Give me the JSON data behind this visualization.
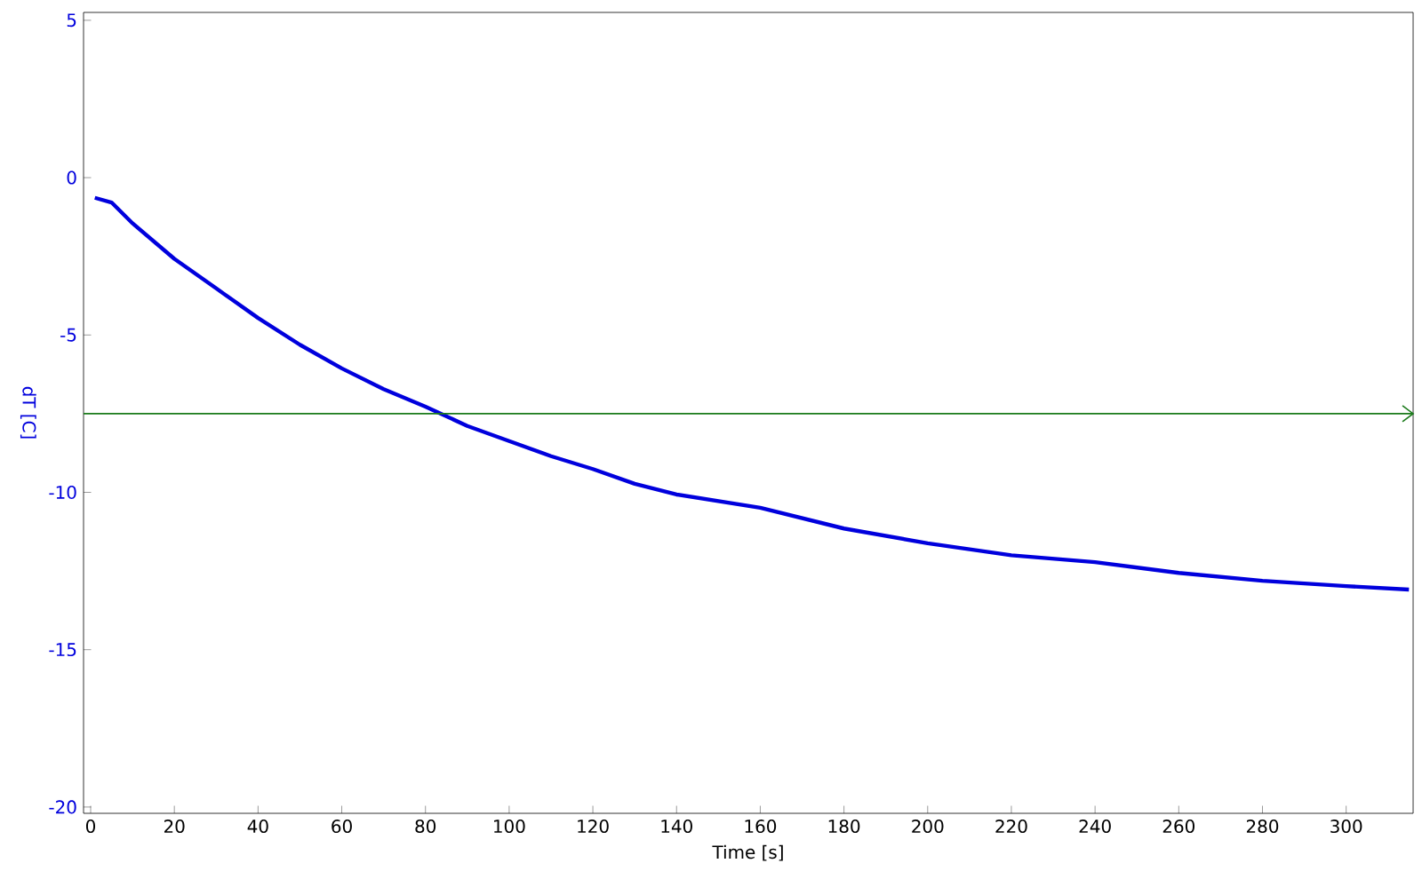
{
  "chart_data": {
    "type": "line",
    "xlabel": "Time [s]",
    "ylabel": "dT [C]",
    "x": [
      1,
      5,
      10,
      20,
      30,
      40,
      50,
      60,
      70,
      80,
      90,
      100,
      110,
      120,
      130,
      140,
      160,
      180,
      200,
      220,
      240,
      260,
      280,
      300,
      315
    ],
    "series": [
      {
        "color": "#0000dd",
        "values": [
          -0.64,
          -0.79,
          -1.45,
          -2.58,
          -3.52,
          -4.46,
          -5.31,
          -6.06,
          -6.72,
          -7.28,
          -7.89,
          -8.37,
          -8.85,
          -9.26,
          -9.73,
          -10.07,
          -10.49,
          -11.15,
          -11.62,
          -12.0,
          -12.22,
          -12.56,
          -12.81,
          -12.98,
          -13.09
        ]
      }
    ],
    "xlim": [
      -1.7,
      316
    ],
    "ylim": [
      -20.2,
      5.25
    ],
    "xticks": [
      0,
      20,
      40,
      60,
      80,
      100,
      120,
      140,
      160,
      180,
      200,
      220,
      240,
      260,
      280,
      300
    ],
    "yticks": [
      -20,
      -15,
      -10,
      -5,
      0,
      5
    ],
    "ref_lines": [
      {
        "axis": "y",
        "value": -7.5,
        "color": "#1a7a1a"
      }
    ],
    "grid": false,
    "marker": "none",
    "line_style": "solid"
  }
}
